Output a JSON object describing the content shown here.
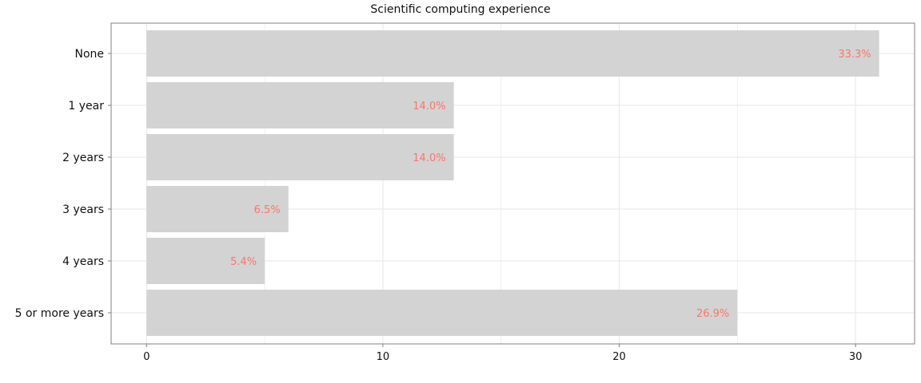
{
  "chart_data": {
    "type": "bar",
    "orientation": "horizontal",
    "title": "Scientific computing experience",
    "xlabel": "",
    "ylabel": "",
    "categories": [
      "None",
      "1 year",
      "2 years",
      "3 years",
      "4 years",
      "5 or more years"
    ],
    "values": [
      31,
      13,
      13,
      6,
      5,
      25
    ],
    "data_labels": [
      "33.3%",
      "14.0%",
      "14.0%",
      "6.5%",
      "5.4%",
      "26.9%"
    ],
    "xlim": [
      -1.5,
      32.5
    ],
    "xticks": [
      0,
      10,
      20,
      30
    ],
    "grid": true,
    "legend": "none",
    "colors": {
      "bar": "#d3d3d3",
      "label": "#f8766d",
      "grid": "#e6e6e6",
      "panel_border": "#808080"
    }
  }
}
